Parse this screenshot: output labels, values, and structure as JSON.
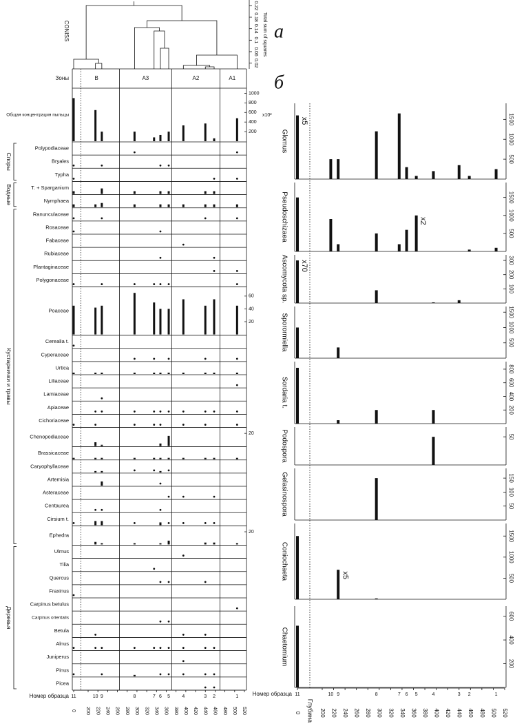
{
  "samples": [
    "11",
    "10",
    "9",
    "8",
    "7",
    "6",
    "5",
    "4",
    "3",
    "2",
    "1"
  ],
  "depths": [
    0,
    215,
    228,
    295,
    335,
    348,
    365,
    395,
    440,
    458,
    505
  ],
  "depth_ticks": [
    0,
    200,
    220,
    240,
    260,
    280,
    300,
    320,
    340,
    360,
    380,
    400,
    420,
    440,
    460,
    480,
    500,
    520
  ],
  "panel_a": {
    "label": "а",
    "sample_axis_label": "Номер образца",
    "coniss": {
      "title": "CONISS",
      "axis_label": "Total sum of squares",
      "ylim": [
        0,
        0.24
      ],
      "yticks": [
        0.02,
        0.06,
        0.1,
        0.14,
        0.18,
        0.22
      ]
    },
    "zones": {
      "label": "Зоны",
      "names": [
        "В",
        "А3",
        "А2",
        "А1"
      ],
      "bounds": [
        264,
        371,
        470
      ]
    },
    "total": {
      "name": "Общая концентрация пыльцы",
      "unit": "x10²",
      "ylim": [
        0,
        1050
      ],
      "yticks": [
        200,
        400,
        600,
        800,
        1000
      ],
      "values": [
        900,
        650,
        200,
        200,
        80,
        130,
        200,
        330,
        370,
        60,
        480
      ]
    },
    "groups": [
      {
        "name": "Споры",
        "rows": [
          {
            "name": "Polypodiaceae",
            "values": [
              0,
              0,
              0,
              0.5,
              0,
              0,
              0,
              0,
              0,
              0,
              0.5
            ]
          },
          {
            "name": "Bryales",
            "values": [
              0.5,
              0,
              0.5,
              0,
              0,
              0.5,
              0.5,
              0,
              0,
              0,
              0
            ]
          },
          {
            "name": "Typha",
            "values": [
              0.5,
              0,
              0,
              0,
              0,
              0,
              0,
              0,
              0,
              0.5,
              0.5
            ]
          }
        ]
      },
      {
        "name": "Водные",
        "rows": [
          {
            "name": "T. + Sparganium",
            "values": [
              2,
              0,
              4,
              2,
              0,
              2,
              2,
              0,
              2,
              2,
              0
            ]
          },
          {
            "name": "Nymphaea",
            "values": [
              2,
              2,
              3,
              2,
              0,
              2,
              2,
              2,
              2,
              2,
              2
            ]
          }
        ]
      },
      {
        "name": "Кустарнички и травы",
        "rows": [
          {
            "name": "Ranunculaceae",
            "values": [
              0.5,
              0,
              0.5,
              0,
              0,
              0,
              0,
              0,
              0.5,
              0,
              0.5
            ]
          },
          {
            "name": "Rosaceae",
            "values": [
              0.5,
              0,
              0,
              0,
              0,
              0.5,
              0,
              0,
              0,
              0,
              0
            ]
          },
          {
            "name": "Fabaceae",
            "values": [
              0,
              0,
              0,
              0,
              0,
              0,
              0,
              0.5,
              0,
              0,
              0
            ]
          },
          {
            "name": "Rubiaceae",
            "values": [
              0,
              0,
              0,
              0,
              0,
              0.5,
              0,
              0,
              0,
              0.5,
              0
            ]
          },
          {
            "name": "Plantaginaceae",
            "values": [
              0,
              0,
              0,
              0,
              0,
              0,
              0,
              0,
              0,
              0.5,
              0.5
            ]
          },
          {
            "name": "Polygonaceae",
            "values": [
              0.5,
              0,
              0.5,
              0.5,
              0.5,
              0.5,
              0.5,
              0,
              0,
              0,
              0.5
            ]
          },
          {
            "name": "Poaceae",
            "ylim": [
              0,
              70
            ],
            "yticks": [
              20,
              40,
              60
            ],
            "values": [
              45,
              42,
              45,
              65,
              50,
              40,
              40,
              55,
              45,
              55,
              45
            ]
          },
          {
            "name": "Cerealia t.",
            "values": [
              0.5,
              0,
              0,
              0,
              0,
              0,
              0,
              0,
              0,
              0,
              0
            ]
          },
          {
            "name": "Cyperaceae",
            "values": [
              0,
              0,
              0,
              0.5,
              0.5,
              0,
              0.5,
              0,
              0.5,
              0,
              0.5
            ]
          },
          {
            "name": "Urtica",
            "values": [
              1,
              1,
              1,
              1,
              1,
              1,
              1,
              1,
              1,
              1,
              1
            ]
          },
          {
            "name": "Liliaceae",
            "values": [
              0,
              0,
              0,
              0,
              0,
              0,
              0,
              0,
              0,
              0,
              0.5
            ]
          },
          {
            "name": "Lamiaceae",
            "values": [
              0,
              0,
              0.5,
              0,
              0,
              0,
              0,
              0,
              0,
              0,
              0
            ]
          },
          {
            "name": "Apiaceae",
            "values": [
              0,
              0.5,
              0.5,
              0.5,
              0.5,
              0.5,
              0.5,
              0.5,
              0.5,
              0.5,
              0.5
            ]
          },
          {
            "name": "Cichoriaceae",
            "values": [
              0.5,
              0.5,
              0,
              0.5,
              0.5,
              0.5,
              0,
              0.5,
              0.5,
              0,
              0.5
            ]
          },
          {
            "name": "Chenopodiaceae",
            "ylim": [
              0,
              25
            ],
            "yticks": [
              20
            ],
            "values": [
              0,
              6,
              2,
              0,
              0,
              4,
              16,
              0,
              0,
              0,
              0
            ]
          },
          {
            "name": "Brassicaceae",
            "values": [
              1,
              1,
              1,
              1,
              1,
              1,
              1,
              1,
              1,
              1,
              1
            ]
          },
          {
            "name": "Caryophyllaceae",
            "values": [
              0,
              1,
              1,
              0.5,
              0.5,
              1,
              0.5,
              0,
              0,
              0,
              0
            ]
          },
          {
            "name": "Artemisia",
            "values": [
              0,
              0,
              3,
              0,
              0,
              0.5,
              0,
              0,
              0,
              0,
              0
            ]
          },
          {
            "name": "Asteraceae",
            "values": [
              0,
              0,
              0,
              0,
              0,
              0,
              0.5,
              0.5,
              0,
              0.5,
              0
            ]
          },
          {
            "name": "Centaurea",
            "values": [
              0,
              0.5,
              0.5,
              0,
              0,
              0.5,
              0,
              0,
              0,
              0,
              0
            ]
          },
          {
            "name": "Cirsium t.",
            "values": [
              0.5,
              3,
              3,
              0.5,
              0,
              2,
              0.5,
              0.5,
              0.5,
              0.5,
              0
            ]
          },
          {
            "name": "Ephedra",
            "ylim": [
              0,
              25
            ],
            "yticks": [
              20
            ],
            "values": [
              0,
              4,
              2,
              2,
              0,
              2,
              6,
              0,
              3,
              3,
              2
            ]
          }
        ]
      },
      {
        "name": "Деревья",
        "rows": [
          {
            "name": "Ulmus",
            "values": [
              0,
              0,
              0,
              0,
              0,
              0,
              0,
              0.5,
              0,
              0,
              0
            ]
          },
          {
            "name": "Tilia",
            "values": [
              0,
              0,
              0,
              0,
              0.5,
              0,
              0,
              0,
              0,
              0,
              0
            ]
          },
          {
            "name": "Quercus",
            "values": [
              0,
              0,
              0,
              0,
              0,
              0.5,
              0.5,
              0,
              0.5,
              0,
              0
            ]
          },
          {
            "name": "Fraxinus",
            "values": [
              0.5,
              0,
              0,
              0,
              0,
              0,
              0,
              0,
              0,
              0,
              0
            ]
          },
          {
            "name": "Carpinus betulus",
            "values": [
              0,
              0,
              0,
              0,
              0,
              0,
              0,
              0,
              0,
              0,
              0.5
            ]
          },
          {
            "name": "Carpinus orientalis",
            "values": [
              0,
              0,
              0,
              0,
              0,
              0.5,
              0.5,
              0,
              0,
              0,
              0
            ]
          },
          {
            "name": "Betula",
            "values": [
              0,
              0.5,
              0,
              0,
              0,
              0,
              0,
              0.5,
              0.5,
              0,
              0
            ]
          },
          {
            "name": "Alnus",
            "values": [
              0.5,
              0.5,
              0.5,
              0.5,
              0.5,
              0.5,
              0.5,
              0.5,
              0.5,
              0.5,
              0
            ]
          },
          {
            "name": "Juniperus",
            "values": [
              0,
              0,
              0,
              0,
              0,
              0,
              0,
              0.5,
              0,
              0,
              0
            ]
          },
          {
            "name": "Pinus",
            "values": [
              0.5,
              0,
              0.5,
              1,
              0,
              0.5,
              0.5,
              0.5,
              0.5,
              0.5,
              0
            ]
          },
          {
            "name": "Picea",
            "values": [
              0,
              0,
              0,
              0,
              0,
              0,
              0,
              0,
              0.5,
              0.5,
              0
            ]
          }
        ]
      }
    ]
  },
  "panel_b": {
    "label": "б",
    "depth_axis_label": "Глубина",
    "sample_axis_label": "Номер образца",
    "rows": [
      {
        "name": "Glomus",
        "ylim": [
          0,
          1800
        ],
        "yticks": [
          500,
          1000,
          1500
        ],
        "values": [
          1600,
          500,
          500,
          1200,
          1650,
          300,
          80,
          200,
          350,
          80,
          250
        ],
        "annotations": [
          {
            "text": "x5",
            "sample": "11"
          }
        ]
      },
      {
        "name": "Pseudoschizaea",
        "ylim": [
          0,
          1800
        ],
        "yticks": [
          500,
          1000,
          1500
        ],
        "values": [
          1500,
          900,
          200,
          500,
          200,
          600,
          1000,
          0,
          0,
          50,
          100
        ],
        "annotations": [
          {
            "text": "x2",
            "sample": "5"
          }
        ]
      },
      {
        "name": "Ascomycota sp.",
        "ylim": [
          0,
          310
        ],
        "yticks": [
          100,
          200,
          300
        ],
        "values": [
          300,
          0,
          0,
          90,
          0,
          0,
          0,
          5,
          20,
          0,
          0
        ],
        "annotations": [
          {
            "text": "x70",
            "sample": "11"
          }
        ]
      },
      {
        "name": "Sporormiella",
        "ylim": [
          0,
          1550
        ],
        "yticks": [
          500,
          1000,
          1500
        ],
        "values": [
          1000,
          0,
          350,
          0,
          0,
          0,
          0,
          0,
          0,
          0,
          0
        ]
      },
      {
        "name": "Sordaria t.",
        "ylim": [
          0,
          850
        ],
        "yticks": [
          200,
          400,
          600,
          800
        ],
        "values": [
          820,
          0,
          50,
          200,
          0,
          0,
          0,
          200,
          0,
          0,
          0
        ]
      },
      {
        "name": "Podospora",
        "ylim": [
          0,
          60
        ],
        "yticks": [
          50
        ],
        "values": [
          0,
          0,
          0,
          0,
          0,
          0,
          0,
          50,
          0,
          0,
          0
        ]
      },
      {
        "name": "Gelasinospora",
        "ylim": [
          0,
          170
        ],
        "yticks": [
          50,
          100,
          150
        ],
        "values": [
          0,
          0,
          0,
          150,
          0,
          0,
          0,
          0,
          0,
          0,
          0
        ]
      },
      {
        "name": "Coniochaeta",
        "ylim": [
          0,
          1700
        ],
        "yticks": [
          500,
          1000,
          1500
        ],
        "values": [
          1500,
          0,
          700,
          20,
          0,
          0,
          0,
          0,
          0,
          0,
          0
        ],
        "annotations": [
          {
            "text": "x5",
            "sample": "9"
          }
        ]
      },
      {
        "name": "Chaetomium",
        "ylim": [
          0,
          650
        ],
        "yticks": [
          200,
          400,
          600
        ],
        "values": [
          520,
          0,
          0,
          0,
          0,
          0,
          0,
          0,
          0,
          0,
          0
        ]
      }
    ]
  }
}
